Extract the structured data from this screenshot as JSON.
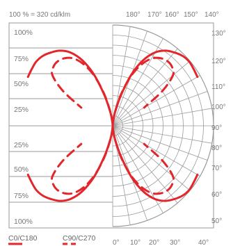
{
  "chart_data": {
    "type": "polar",
    "title": "100 % = 320 cd/klm",
    "top_angle_labels": [
      "180°",
      "170°",
      "160°",
      "150°",
      "140°"
    ],
    "right_angle_labels": [
      "130°",
      "120°",
      "110°",
      "100°",
      "90°",
      "80°",
      "70°",
      "60°",
      "50°"
    ],
    "bottom_angle_labels": [
      "0°",
      "10°",
      "20°",
      "30°",
      "40°"
    ],
    "intensity_labels_upper": [
      "100%",
      "75%",
      "50%",
      "25%"
    ],
    "intensity_labels_lower": [
      "25%",
      "50%",
      "75%",
      "100%"
    ],
    "intensity_range_percent": [
      0,
      100
    ],
    "grid": true,
    "legend_position": "bottom-left",
    "series": [
      {
        "name": "C0/C180",
        "style": "solid",
        "color": "#e3262b",
        "angles_deg": [
          0,
          5,
          10,
          15,
          20,
          25,
          30,
          35,
          40,
          45,
          50,
          55,
          60
        ],
        "intensity_percent": [
          0,
          4,
          14,
          31,
          54,
          72,
          84,
          91,
          95,
          98,
          99,
          98,
          97
        ]
      },
      {
        "name": "C90/C270",
        "style": "dashed",
        "color": "#e3262b",
        "angles_deg": [
          0,
          5,
          10,
          15,
          20,
          25,
          30,
          35,
          40,
          45,
          50,
          55,
          60
        ],
        "intensity_percent": [
          0,
          4,
          15,
          33,
          52,
          67,
          77,
          82,
          84,
          83,
          78,
          60,
          36
        ]
      }
    ]
  }
}
